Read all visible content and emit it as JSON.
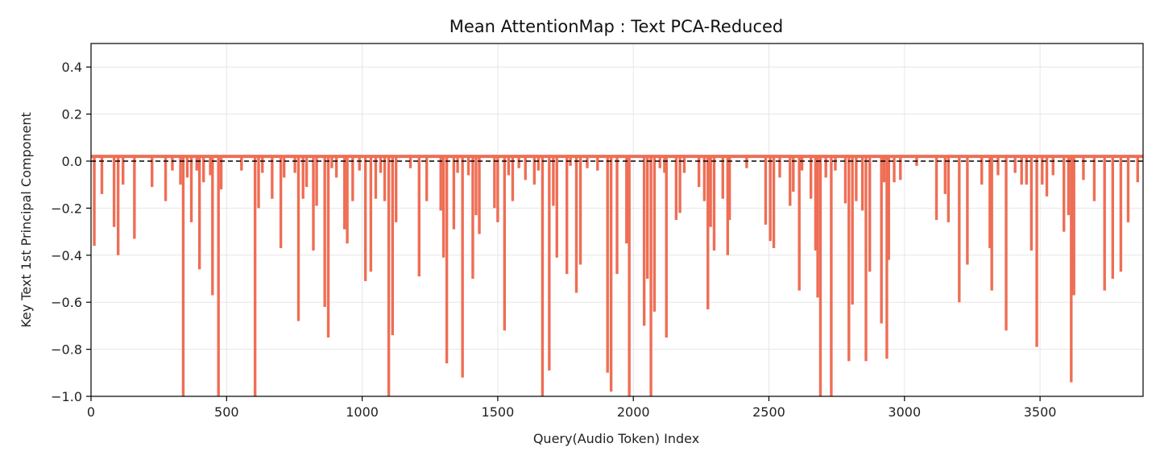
{
  "chart_data": {
    "type": "line",
    "title": "Mean AttentionMap : Text PCA-Reduced",
    "xlabel": "Query(Audio Token) Index",
    "ylabel": "Key Text 1st Principal Component",
    "xlim": [
      0,
      3880
    ],
    "ylim": [
      -1.0,
      0.5
    ],
    "xticks": [
      0,
      500,
      1000,
      1500,
      2000,
      2500,
      3000,
      3500
    ],
    "yticks": [
      0.4,
      0.2,
      0.0,
      -0.2,
      -0.4,
      -0.6,
      -0.8,
      -1.0
    ],
    "xtick_labels": [
      "0",
      "500",
      "1000",
      "1500",
      "2000",
      "2500",
      "3000",
      "3500"
    ],
    "ytick_labels": [
      "0.4",
      "0.2",
      "0.0",
      "−0.2",
      "−0.4",
      "−0.6",
      "−0.8",
      "−1.0"
    ],
    "grid": true,
    "baseline": 0.02,
    "reference_line": {
      "y": 0.0,
      "style": "dashed",
      "color": "#000000"
    },
    "series": [
      {
        "color": "#ee6e55",
        "spikes": [
          {
            "x": 12,
            "y": -0.36
          },
          {
            "x": 40,
            "y": -0.14
          },
          {
            "x": 85,
            "y": -0.28
          },
          {
            "x": 100,
            "y": -0.4
          },
          {
            "x": 118,
            "y": -0.1
          },
          {
            "x": 160,
            "y": -0.33
          },
          {
            "x": 225,
            "y": -0.11
          },
          {
            "x": 275,
            "y": -0.17
          },
          {
            "x": 300,
            "y": -0.04
          },
          {
            "x": 330,
            "y": -0.1
          },
          {
            "x": 340,
            "y": -1.0
          },
          {
            "x": 355,
            "y": -0.07
          },
          {
            "x": 370,
            "y": -0.26
          },
          {
            "x": 390,
            "y": -0.04
          },
          {
            "x": 400,
            "y": -0.46
          },
          {
            "x": 415,
            "y": -0.09
          },
          {
            "x": 440,
            "y": -0.06
          },
          {
            "x": 448,
            "y": -0.57
          },
          {
            "x": 470,
            "y": -1.0
          },
          {
            "x": 480,
            "y": -0.12
          },
          {
            "x": 555,
            "y": -0.04
          },
          {
            "x": 605,
            "y": -1.0
          },
          {
            "x": 618,
            "y": -0.2
          },
          {
            "x": 632,
            "y": -0.05
          },
          {
            "x": 668,
            "y": -0.16
          },
          {
            "x": 700,
            "y": -0.37
          },
          {
            "x": 712,
            "y": -0.07
          },
          {
            "x": 752,
            "y": -0.05
          },
          {
            "x": 765,
            "y": -0.68
          },
          {
            "x": 782,
            "y": -0.16
          },
          {
            "x": 795,
            "y": -0.11
          },
          {
            "x": 820,
            "y": -0.38
          },
          {
            "x": 832,
            "y": -0.19
          },
          {
            "x": 862,
            "y": -0.62
          },
          {
            "x": 875,
            "y": -0.75
          },
          {
            "x": 888,
            "y": -0.03
          },
          {
            "x": 905,
            "y": -0.07
          },
          {
            "x": 935,
            "y": -0.29
          },
          {
            "x": 945,
            "y": -0.35
          },
          {
            "x": 965,
            "y": -0.17
          },
          {
            "x": 990,
            "y": -0.04
          },
          {
            "x": 1012,
            "y": -0.51
          },
          {
            "x": 1032,
            "y": -0.47
          },
          {
            "x": 1050,
            "y": -0.16
          },
          {
            "x": 1068,
            "y": -0.05
          },
          {
            "x": 1083,
            "y": -0.17
          },
          {
            "x": 1098,
            "y": -1.0
          },
          {
            "x": 1112,
            "y": -0.74
          },
          {
            "x": 1125,
            "y": -0.26
          },
          {
            "x": 1178,
            "y": -0.03
          },
          {
            "x": 1210,
            "y": -0.49
          },
          {
            "x": 1238,
            "y": -0.17
          },
          {
            "x": 1290,
            "y": -0.21
          },
          {
            "x": 1300,
            "y": -0.41
          },
          {
            "x": 1312,
            "y": -0.86
          },
          {
            "x": 1338,
            "y": -0.29
          },
          {
            "x": 1352,
            "y": -0.05
          },
          {
            "x": 1370,
            "y": -0.92
          },
          {
            "x": 1392,
            "y": -0.06
          },
          {
            "x": 1408,
            "y": -0.5
          },
          {
            "x": 1420,
            "y": -0.23
          },
          {
            "x": 1432,
            "y": -0.31
          },
          {
            "x": 1488,
            "y": -0.2
          },
          {
            "x": 1500,
            "y": -0.26
          },
          {
            "x": 1525,
            "y": -0.72
          },
          {
            "x": 1540,
            "y": -0.06
          },
          {
            "x": 1555,
            "y": -0.17
          },
          {
            "x": 1578,
            "y": -0.03
          },
          {
            "x": 1602,
            "y": -0.08
          },
          {
            "x": 1635,
            "y": -0.1
          },
          {
            "x": 1650,
            "y": -0.04
          },
          {
            "x": 1665,
            "y": -1.0
          },
          {
            "x": 1690,
            "y": -0.89
          },
          {
            "x": 1705,
            "y": -0.19
          },
          {
            "x": 1718,
            "y": -0.41
          },
          {
            "x": 1755,
            "y": -0.48
          },
          {
            "x": 1768,
            "y": -0.02
          },
          {
            "x": 1790,
            "y": -0.56
          },
          {
            "x": 1805,
            "y": -0.44
          },
          {
            "x": 1830,
            "y": -0.03
          },
          {
            "x": 1868,
            "y": -0.04
          },
          {
            "x": 1905,
            "y": -0.9
          },
          {
            "x": 1918,
            "y": -0.98
          },
          {
            "x": 1940,
            "y": -0.48
          },
          {
            "x": 1975,
            "y": -0.35
          },
          {
            "x": 1985,
            "y": -1.0
          },
          {
            "x": 2040,
            "y": -0.7
          },
          {
            "x": 2052,
            "y": -0.5
          },
          {
            "x": 2065,
            "y": -1.0
          },
          {
            "x": 2078,
            "y": -0.64
          },
          {
            "x": 2098,
            "y": -0.03
          },
          {
            "x": 2115,
            "y": -0.05
          },
          {
            "x": 2122,
            "y": -0.75
          },
          {
            "x": 2158,
            "y": -0.25
          },
          {
            "x": 2172,
            "y": -0.22
          },
          {
            "x": 2188,
            "y": -0.05
          },
          {
            "x": 2242,
            "y": -0.11
          },
          {
            "x": 2262,
            "y": -0.17
          },
          {
            "x": 2275,
            "y": -0.63
          },
          {
            "x": 2285,
            "y": -0.28
          },
          {
            "x": 2298,
            "y": -0.38
          },
          {
            "x": 2330,
            "y": -0.16
          },
          {
            "x": 2348,
            "y": -0.4
          },
          {
            "x": 2355,
            "y": -0.25
          },
          {
            "x": 2418,
            "y": -0.03
          },
          {
            "x": 2488,
            "y": -0.27
          },
          {
            "x": 2505,
            "y": -0.34
          },
          {
            "x": 2518,
            "y": -0.37
          },
          {
            "x": 2540,
            "y": -0.07
          },
          {
            "x": 2578,
            "y": -0.19
          },
          {
            "x": 2590,
            "y": -0.13
          },
          {
            "x": 2612,
            "y": -0.55
          },
          {
            "x": 2622,
            "y": -0.04
          },
          {
            "x": 2655,
            "y": -0.16
          },
          {
            "x": 2672,
            "y": -0.38
          },
          {
            "x": 2680,
            "y": -0.58
          },
          {
            "x": 2690,
            "y": -1.0
          },
          {
            "x": 2710,
            "y": -0.07
          },
          {
            "x": 2730,
            "y": -1.0
          },
          {
            "x": 2745,
            "y": -0.04
          },
          {
            "x": 2782,
            "y": -0.18
          },
          {
            "x": 2795,
            "y": -0.85
          },
          {
            "x": 2808,
            "y": -0.61
          },
          {
            "x": 2822,
            "y": -0.17
          },
          {
            "x": 2845,
            "y": -0.21
          },
          {
            "x": 2858,
            "y": -0.85
          },
          {
            "x": 2872,
            "y": -0.47
          },
          {
            "x": 2915,
            "y": -0.69
          },
          {
            "x": 2925,
            "y": -0.09
          },
          {
            "x": 2935,
            "y": -0.84
          },
          {
            "x": 2942,
            "y": -0.42
          },
          {
            "x": 2962,
            "y": -0.09
          },
          {
            "x": 2985,
            "y": -0.08
          },
          {
            "x": 3045,
            "y": -0.02
          },
          {
            "x": 3118,
            "y": -0.25
          },
          {
            "x": 3150,
            "y": -0.14
          },
          {
            "x": 3162,
            "y": -0.26
          },
          {
            "x": 3202,
            "y": -0.6
          },
          {
            "x": 3232,
            "y": -0.44
          },
          {
            "x": 3285,
            "y": -0.1
          },
          {
            "x": 3315,
            "y": -0.37
          },
          {
            "x": 3322,
            "y": -0.55
          },
          {
            "x": 3345,
            "y": -0.06
          },
          {
            "x": 3375,
            "y": -0.72
          },
          {
            "x": 3408,
            "y": -0.05
          },
          {
            "x": 3432,
            "y": -0.1
          },
          {
            "x": 3450,
            "y": -0.1
          },
          {
            "x": 3468,
            "y": -0.38
          },
          {
            "x": 3488,
            "y": -0.79
          },
          {
            "x": 3508,
            "y": -0.1
          },
          {
            "x": 3525,
            "y": -0.15
          },
          {
            "x": 3548,
            "y": -0.06
          },
          {
            "x": 3588,
            "y": -0.3
          },
          {
            "x": 3605,
            "y": -0.23
          },
          {
            "x": 3615,
            "y": -0.94
          },
          {
            "x": 3625,
            "y": -0.57
          },
          {
            "x": 3660,
            "y": -0.08
          },
          {
            "x": 3700,
            "y": -0.17
          },
          {
            "x": 3738,
            "y": -0.55
          },
          {
            "x": 3768,
            "y": -0.5
          },
          {
            "x": 3798,
            "y": -0.47
          },
          {
            "x": 3825,
            "y": -0.26
          },
          {
            "x": 3860,
            "y": -0.09
          }
        ]
      }
    ]
  }
}
